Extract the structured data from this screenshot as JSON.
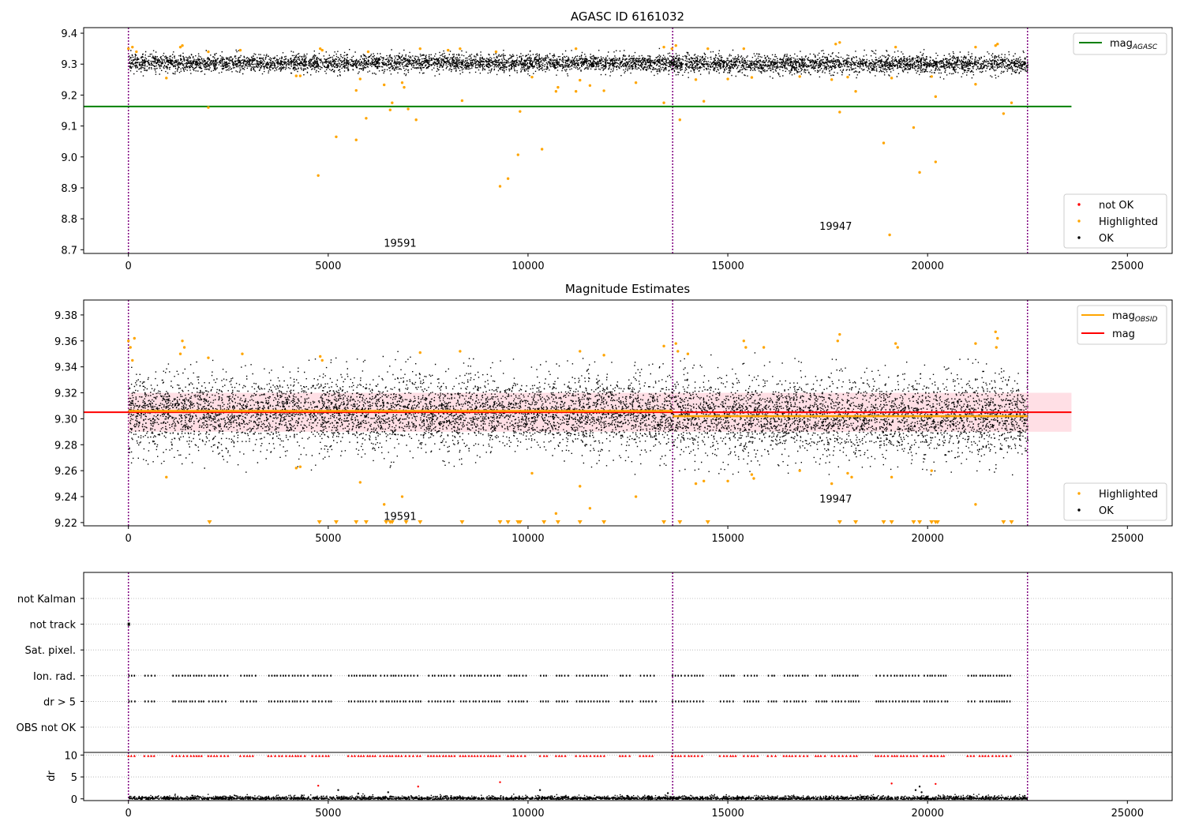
{
  "colors": {
    "ok": "#000000",
    "highlighted": "#ffa500",
    "not_ok": "#ff0000",
    "agasc_line": "#008000",
    "mag_line": "#ff0000",
    "obsid_line": "#ffa500",
    "obs_boundary": "#800080",
    "mag_band": "#ffc0cb",
    "grid": "#b0b0b0"
  },
  "chart_data": [
    {
      "type": "scatter",
      "title": "AGASC ID 6161032",
      "xlim": [
        -1120,
        26120
      ],
      "ylim": [
        8.688,
        9.418
      ],
      "xticks": [
        0,
        5000,
        10000,
        15000,
        20000,
        25000
      ],
      "yticks": [
        8.7,
        8.8,
        8.9,
        9.0,
        9.1,
        9.2,
        9.3,
        9.4
      ],
      "ytick_labels": [
        "8.7",
        "8.8",
        "8.9",
        "9.0",
        "9.1",
        "9.2",
        "9.3",
        "9.4"
      ],
      "obs_boundaries": [
        0,
        13620,
        22500
      ],
      "obs_labels": [
        {
          "text": "19591",
          "x": 6800,
          "y": 8.71
        },
        {
          "text": "19947",
          "x": 17700,
          "y": 8.765
        }
      ],
      "ok_band": [
        {
          "x0": 0,
          "x1": 13620,
          "center": 9.305,
          "half": 0.028
        },
        {
          "x0": 13620,
          "x1": 22500,
          "center": 9.302,
          "half": 0.03
        }
      ],
      "agasc_mag": {
        "value": 9.163,
        "x0": -1120,
        "x1": 23600
      },
      "highlighted_points": [
        [
          0,
          9.35
        ],
        [
          100,
          9.355
        ],
        [
          200,
          9.34
        ],
        [
          1300,
          9.355
        ],
        [
          1350,
          9.36
        ],
        [
          2000,
          9.34
        ],
        [
          2800,
          9.345
        ],
        [
          4800,
          9.35
        ],
        [
          4850,
          9.345
        ],
        [
          6000,
          9.34
        ],
        [
          7300,
          9.35
        ],
        [
          8000,
          9.345
        ],
        [
          8300,
          9.35
        ],
        [
          9200,
          9.34
        ],
        [
          11200,
          9.35
        ],
        [
          13400,
          9.355
        ],
        [
          13600,
          9.35
        ],
        [
          13700,
          9.36
        ],
        [
          14500,
          9.35
        ],
        [
          15400,
          9.35
        ],
        [
          17700,
          9.365
        ],
        [
          17800,
          9.37
        ],
        [
          19200,
          9.355
        ],
        [
          21200,
          9.355
        ],
        [
          21700,
          9.36
        ],
        [
          21750,
          9.365
        ],
        [
          950,
          9.255
        ],
        [
          2000,
          9.16
        ],
        [
          4200,
          9.262
        ],
        [
          4300,
          9.262
        ],
        [
          5700,
          9.215
        ],
        [
          5800,
          9.252
        ],
        [
          6400,
          9.233
        ],
        [
          6550,
          9.152
        ],
        [
          6600,
          9.175
        ],
        [
          6850,
          9.24
        ],
        [
          6900,
          9.225
        ],
        [
          7000,
          9.155
        ],
        [
          7200,
          9.12
        ],
        [
          8350,
          9.182
        ],
        [
          10100,
          9.258
        ],
        [
          10700,
          9.212
        ],
        [
          10750,
          9.225
        ],
        [
          11200,
          9.212
        ],
        [
          11300,
          9.248
        ],
        [
          11550,
          9.231
        ],
        [
          11900,
          9.214
        ],
        [
          12700,
          9.24
        ],
        [
          13400,
          9.175
        ],
        [
          13800,
          9.12
        ],
        [
          14200,
          9.25
        ],
        [
          14400,
          9.18
        ],
        [
          15000,
          9.252
        ],
        [
          15600,
          9.257
        ],
        [
          16800,
          9.26
        ],
        [
          17600,
          9.25
        ],
        [
          17800,
          9.145
        ],
        [
          18000,
          9.258
        ],
        [
          18200,
          9.212
        ],
        [
          19100,
          9.255
        ],
        [
          20100,
          9.26
        ],
        [
          20200,
          9.195
        ],
        [
          21200,
          9.235
        ],
        [
          21900,
          9.14
        ],
        [
          22100,
          9.175
        ],
        [
          4750,
          8.94
        ],
        [
          5200,
          9.065
        ],
        [
          5700,
          9.055
        ],
        [
          5950,
          9.125
        ],
        [
          9300,
          8.905
        ],
        [
          9500,
          8.93
        ],
        [
          9750,
          9.007
        ],
        [
          9800,
          9.147
        ],
        [
          10350,
          9.025
        ],
        [
          18900,
          9.045
        ],
        [
          19050,
          8.748
        ],
        [
          19650,
          9.095
        ],
        [
          19800,
          8.95
        ],
        [
          20200,
          8.984
        ]
      ],
      "legend": {
        "placement": "upper right",
        "entries": [
          {
            "label": "mag",
            "sub": "AGASC",
            "kind": "line"
          }
        ],
        "markers_placement": "lower right",
        "markers": [
          {
            "label": "not OK",
            "kind": "not_ok"
          },
          {
            "label": "Highlighted",
            "kind": "highlighted"
          },
          {
            "label": "OK",
            "kind": "ok"
          }
        ]
      }
    },
    {
      "type": "scatter",
      "title": "Magnitude Estimates",
      "xlim": [
        -1120,
        26120
      ],
      "ylim": [
        9.2175,
        9.3915
      ],
      "xticks": [
        0,
        5000,
        10000,
        15000,
        20000,
        25000
      ],
      "yticks": [
        9.22,
        9.24,
        9.26,
        9.28,
        9.3,
        9.32,
        9.34,
        9.36,
        9.38
      ],
      "ytick_labels": [
        "9.22",
        "9.24",
        "9.26",
        "9.28",
        "9.30",
        "9.32",
        "9.34",
        "9.36",
        "9.38"
      ],
      "obs_boundaries": [
        0,
        13620,
        22500
      ],
      "obs_labels": [
        {
          "text": "19591",
          "x": 6800,
          "y": 9.222
        },
        {
          "text": "19947",
          "x": 17700,
          "y": 9.2355
        }
      ],
      "ok_band": [
        {
          "x0": 0,
          "x1": 13620,
          "center": 9.305,
          "half": 0.028
        },
        {
          "x0": 13620,
          "x1": 22500,
          "center": 9.302,
          "half": 0.03
        }
      ],
      "mag_line": {
        "value": 9.305,
        "x0": -1120,
        "x1": 23600,
        "band": [
          9.29,
          9.32
        ]
      },
      "obsid_mag": [
        {
          "x0": 0,
          "x1": 13620,
          "value": 9.306
        },
        {
          "x0": 13620,
          "x1": 22500,
          "value": 9.302
        }
      ],
      "highlighted_points": [
        [
          0,
          9.36
        ],
        [
          50,
          9.355
        ],
        [
          100,
          9.345
        ],
        [
          150,
          9.362
        ],
        [
          1350,
          9.36
        ],
        [
          1400,
          9.355
        ],
        [
          1300,
          9.35
        ],
        [
          2000,
          9.347
        ],
        [
          2850,
          9.35
        ],
        [
          4800,
          9.348
        ],
        [
          4850,
          9.345
        ],
        [
          7300,
          9.351
        ],
        [
          8300,
          9.352
        ],
        [
          11300,
          9.352
        ],
        [
          11900,
          9.349
        ],
        [
          13400,
          9.356
        ],
        [
          13700,
          9.358
        ],
        [
          13750,
          9.352
        ],
        [
          14000,
          9.35
        ],
        [
          15400,
          9.36
        ],
        [
          15450,
          9.355
        ],
        [
          15900,
          9.355
        ],
        [
          17800,
          9.365
        ],
        [
          17750,
          9.36
        ],
        [
          19200,
          9.358
        ],
        [
          19250,
          9.355
        ],
        [
          21200,
          9.358
        ],
        [
          21700,
          9.367
        ],
        [
          21750,
          9.362
        ],
        [
          21720,
          9.355
        ],
        [
          950,
          9.255
        ],
        [
          4200,
          9.262
        ],
        [
          4300,
          9.263
        ],
        [
          5800,
          9.251
        ],
        [
          6400,
          9.234
        ],
        [
          6850,
          9.24
        ],
        [
          10100,
          9.258
        ],
        [
          10700,
          9.227
        ],
        [
          11300,
          9.248
        ],
        [
          11550,
          9.231
        ],
        [
          12700,
          9.24
        ],
        [
          14200,
          9.25
        ],
        [
          14400,
          9.252
        ],
        [
          15000,
          9.252
        ],
        [
          15600,
          9.257
        ],
        [
          15650,
          9.254
        ],
        [
          16800,
          9.26
        ],
        [
          17600,
          9.25
        ],
        [
          18000,
          9.258
        ],
        [
          18100,
          9.255
        ],
        [
          19100,
          9.255
        ],
        [
          20100,
          9.26
        ],
        [
          21200,
          9.234
        ]
      ],
      "clipped_points_x": [
        2030,
        4780,
        5200,
        5700,
        5950,
        6450,
        6550,
        6600,
        6950,
        7300,
        8350,
        9300,
        9500,
        9750,
        9800,
        10400,
        10750,
        11300,
        11900,
        13400,
        13800,
        14500,
        17800,
        18200,
        18900,
        19100,
        19650,
        19800,
        20100,
        20200,
        20250,
        21900,
        22100
      ],
      "legend": {
        "placement": "upper right",
        "entries": [
          {
            "label": "mag",
            "sub": "OBSID",
            "kind": "obsid"
          },
          {
            "label": "mag",
            "sub": "",
            "kind": "mag"
          }
        ],
        "markers_placement": "lower right",
        "markers": [
          {
            "label": "Highlighted",
            "kind": "highlighted"
          },
          {
            "label": "OK",
            "kind": "ok"
          }
        ]
      }
    },
    {
      "type": "scatter",
      "title": "",
      "xlim": [
        -1120,
        26120
      ],
      "flag_rows": [
        "not Kalman",
        "not track",
        "Sat. pixel.",
        "Ion. rad.",
        "dr > 5",
        "OBS not OK"
      ],
      "obs_boundaries": [
        0,
        13620,
        22500
      ],
      "not_track_x": [
        0
      ],
      "flag_clusters": [
        [
          0,
          200
        ],
        [
          400,
          700
        ],
        [
          1100,
          1900
        ],
        [
          2000,
          2500
        ],
        [
          2800,
          3200
        ],
        [
          3500,
          4500
        ],
        [
          4600,
          5100
        ],
        [
          5500,
          6200
        ],
        [
          6300,
          7300
        ],
        [
          7500,
          8200
        ],
        [
          8300,
          9300
        ],
        [
          9500,
          10000
        ],
        [
          10300,
          10500
        ],
        [
          10700,
          11000
        ],
        [
          11200,
          12000
        ],
        [
          12300,
          12600
        ],
        [
          12800,
          13200
        ],
        [
          13600,
          14400
        ],
        [
          14800,
          15200
        ],
        [
          15400,
          15800
        ],
        [
          16000,
          16200
        ],
        [
          16400,
          17000
        ],
        [
          17200,
          17500
        ],
        [
          17600,
          18300
        ],
        [
          18700,
          19800
        ],
        [
          19900,
          20100
        ],
        [
          20100,
          20500
        ],
        [
          21000,
          21200
        ],
        [
          21300,
          22100
        ]
      ]
    },
    {
      "type": "scatter",
      "title": "",
      "ylabel": "dr",
      "xlim": [
        -1120,
        26120
      ],
      "ylim": [
        -0.4,
        10.6
      ],
      "xticks": [
        0,
        5000,
        10000,
        15000,
        20000,
        25000
      ],
      "yticks": [
        0,
        5,
        10
      ],
      "ytick_labels": [
        "0",
        "5",
        "10"
      ],
      "obs_boundaries": [
        0,
        13620,
        22500
      ],
      "red_points": [
        [
          4750,
          3.0
        ],
        [
          7250,
          2.8
        ],
        [
          9300,
          3.8
        ],
        [
          19100,
          3.5
        ],
        [
          20200,
          3.4
        ]
      ],
      "black_outliers": [
        [
          5250,
          2.0
        ],
        [
          5750,
          1.2
        ],
        [
          6500,
          1.5
        ],
        [
          10300,
          2.0
        ],
        [
          13500,
          1.3
        ],
        [
          19700,
          2.0
        ],
        [
          19800,
          2.8
        ],
        [
          19850,
          1.5
        ]
      ]
    }
  ]
}
